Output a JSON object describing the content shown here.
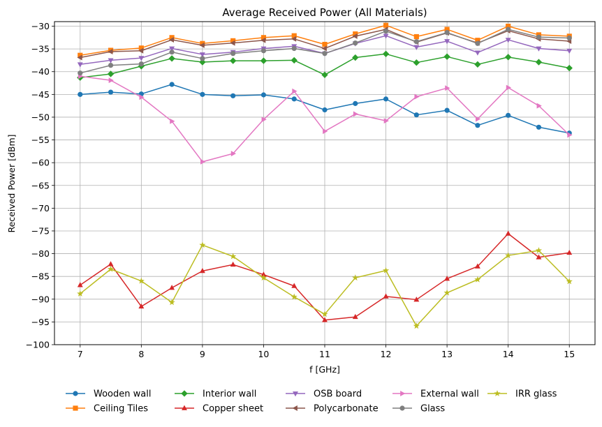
{
  "chart_data": {
    "type": "line",
    "title": "Average Received Power (All Materials)",
    "xlabel": "f [GHz]",
    "ylabel": "Received Power [dBm]",
    "xlim": [
      6.58,
      15.42
    ],
    "ylim": [
      -100,
      -29
    ],
    "grid": true,
    "legend_position": "bottom",
    "x_ticks": [
      7,
      8,
      9,
      10,
      11,
      12,
      13,
      14,
      15
    ],
    "x_tick_labels": [
      "7",
      "8",
      "9",
      "10",
      "11",
      "12",
      "13",
      "14",
      "15"
    ],
    "y_ticks": [
      -100,
      -95,
      -90,
      -85,
      -80,
      -75,
      -70,
      -65,
      -60,
      -55,
      -50,
      -45,
      -40,
      -35,
      -30
    ],
    "y_tick_labels": [
      "−100",
      "−95",
      "−90",
      "−85",
      "−80",
      "−75",
      "−70",
      "−65",
      "−60",
      "−55",
      "−50",
      "−45",
      "−40",
      "−35",
      "−30"
    ],
    "x": [
      7,
      7.5,
      8,
      8.5,
      9,
      9.5,
      10,
      10.5,
      11,
      11.5,
      12,
      12.5,
      13,
      13.5,
      14,
      14.5,
      15
    ],
    "series": [
      {
        "name": "Wooden wall",
        "color": "#1f77b4",
        "marker": "circle",
        "values": [
          -45.0,
          -44.5,
          -44.9,
          -42.8,
          -45.0,
          -45.3,
          -45.1,
          -46.0,
          -48.4,
          -47.0,
          -46.0,
          -49.5,
          -48.5,
          -51.8,
          -49.6,
          -52.2,
          -53.5
        ]
      },
      {
        "name": "Ceiling Tiles",
        "color": "#ff7f0e",
        "marker": "square",
        "values": [
          -36.4,
          -35.3,
          -34.8,
          -32.5,
          -33.8,
          -33.2,
          -32.5,
          -32.1,
          -34.0,
          -31.7,
          -29.8,
          -32.3,
          -30.7,
          -33.1,
          -30.0,
          -31.9,
          -32.2
        ]
      },
      {
        "name": "Interior wall",
        "color": "#2ca02c",
        "marker": "diamond",
        "values": [
          -41.3,
          -40.5,
          -38.8,
          -37.1,
          -37.9,
          -37.6,
          -37.6,
          -37.5,
          -40.7,
          -36.9,
          -36.1,
          -38.0,
          -36.7,
          -38.4,
          -36.8,
          -37.9,
          -39.2
        ]
      },
      {
        "name": "Copper sheet",
        "color": "#d62728",
        "marker": "triangle-up",
        "values": [
          -86.9,
          -82.3,
          -91.6,
          -87.5,
          -83.8,
          -82.4,
          -84.6,
          -87.1,
          -94.6,
          -93.9,
          -89.4,
          -90.1,
          -85.5,
          -82.8,
          -75.6,
          -80.8,
          -79.8
        ]
      },
      {
        "name": "OSB board",
        "color": "#9467bd",
        "marker": "triangle-down",
        "values": [
          -38.4,
          -37.5,
          -37.0,
          -34.9,
          -36.2,
          -35.7,
          -34.9,
          -34.4,
          -36.0,
          -33.8,
          -32.1,
          -34.6,
          -33.3,
          -35.8,
          -33.0,
          -34.9,
          -35.4
        ]
      },
      {
        "name": "Polycarbonate",
        "color": "#8c564b",
        "marker": "triangle-left",
        "values": [
          -36.9,
          -35.6,
          -35.4,
          -33.0,
          -34.2,
          -33.7,
          -33.1,
          -32.8,
          -34.9,
          -32.2,
          -30.7,
          -33.5,
          -31.5,
          -33.7,
          -31.0,
          -32.8,
          -33.3
        ]
      },
      {
        "name": "External wall",
        "color": "#e377c2",
        "marker": "triangle-right",
        "values": [
          -41.0,
          -41.9,
          -45.6,
          -50.9,
          -59.8,
          -58.0,
          -50.5,
          -44.3,
          -53.1,
          -49.3,
          -50.8,
          -45.5,
          -43.6,
          -50.4,
          -43.5,
          -47.5,
          -53.9
        ]
      },
      {
        "name": "Glass",
        "color": "#7f7f7f",
        "marker": "circle",
        "values": [
          -40.3,
          -38.6,
          -38.3,
          -35.7,
          -37.1,
          -36.0,
          -35.4,
          -34.9,
          -36.0,
          -33.7,
          -31.1,
          -33.4,
          -31.4,
          -33.8,
          -30.7,
          -32.4,
          -32.6
        ]
      },
      {
        "name": "IRR glass",
        "color": "#bcbd22",
        "marker": "star",
        "values": [
          -88.8,
          -83.4,
          -86.0,
          -90.7,
          -78.1,
          -80.6,
          -85.3,
          -89.5,
          -93.3,
          -85.3,
          -83.7,
          -95.9,
          -88.6,
          -85.7,
          -80.4,
          -79.3,
          -86.1
        ]
      }
    ]
  }
}
